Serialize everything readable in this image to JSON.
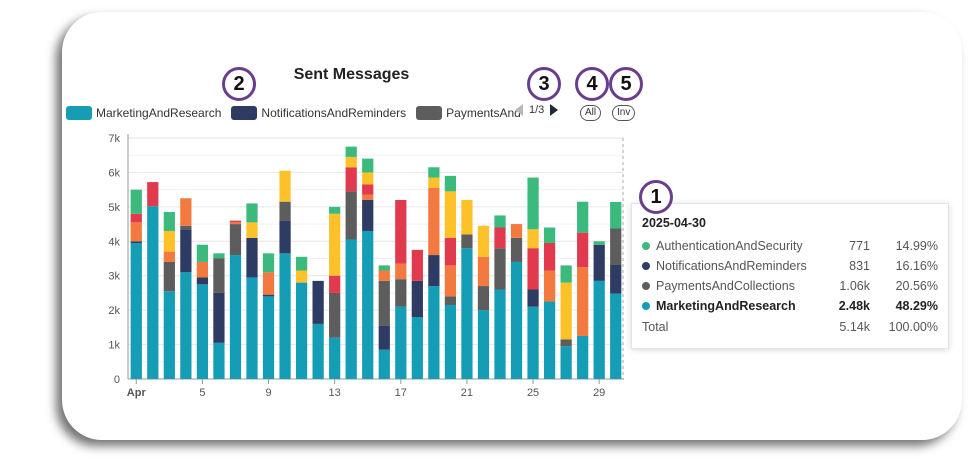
{
  "chart_data": {
    "type": "bar",
    "stacked": true,
    "title": "Sent Messages",
    "y_ticks": [
      "0",
      "1k",
      "2k",
      "3k",
      "4k",
      "5k",
      "6k",
      "7k"
    ],
    "ylim": [
      0,
      7000
    ],
    "x_tick_labels": [
      "Apr",
      "5",
      "9",
      "13",
      "17",
      "21",
      "25",
      "29"
    ],
    "x_tick_days": [
      1,
      5,
      9,
      13,
      17,
      21,
      25,
      29
    ],
    "days": [
      1,
      2,
      3,
      4,
      5,
      6,
      7,
      8,
      9,
      10,
      11,
      12,
      13,
      14,
      15,
      16,
      17,
      18,
      19,
      20,
      21,
      22,
      23,
      24,
      25,
      26,
      27,
      28,
      29,
      30
    ],
    "colors": {
      "MarketingAndResearch": "#159db5",
      "NotificationsAndReminders": "#2e3b63",
      "PaymentsAndCollections": "#5d5d5d",
      "Orange": "#f27a40",
      "Red": "#e13a4e",
      "Yellow": "#fdc12a",
      "AuthenticationAndSecurity": "#3cba7e"
    },
    "series": [
      {
        "name": "MarketingAndResearch",
        "values": [
          3950,
          5020,
          2550,
          3100,
          2750,
          1050,
          3600,
          2950,
          2400,
          3650,
          2800,
          1600,
          1200,
          4050,
          4300,
          850,
          2100,
          1800,
          2700,
          2150,
          3800,
          2000,
          2600,
          3400,
          2100,
          2250,
          950,
          1250,
          2850,
          2480
        ]
      },
      {
        "name": "NotificationsAndReminders",
        "values": [
          50,
          0,
          0,
          1250,
          200,
          1450,
          0,
          1150,
          50,
          950,
          0,
          1250,
          0,
          0,
          900,
          700,
          0,
          1050,
          900,
          0,
          0,
          0,
          0,
          0,
          500,
          0,
          0,
          0,
          1050,
          831
        ]
      },
      {
        "name": "PaymentsAndCollections",
        "values": [
          0,
          0,
          850,
          100,
          0,
          1000,
          900,
          0,
          0,
          550,
          0,
          0,
          1300,
          1400,
          0,
          1300,
          800,
          0,
          0,
          250,
          400,
          700,
          1200,
          700,
          0,
          0,
          200,
          0,
          0,
          1060
        ]
      },
      {
        "name": "Orange",
        "values": [
          550,
          0,
          300,
          800,
          450,
          0,
          50,
          0,
          650,
          0,
          0,
          0,
          0,
          0,
          150,
          300,
          450,
          0,
          1950,
          900,
          0,
          850,
          0,
          400,
          0,
          900,
          0,
          2000,
          0,
          0
        ]
      },
      {
        "name": "Red",
        "values": [
          250,
          700,
          0,
          0,
          0,
          0,
          50,
          0,
          0,
          0,
          0,
          0,
          500,
          700,
          300,
          0,
          1850,
          900,
          0,
          800,
          0,
          0,
          600,
          0,
          1200,
          800,
          0,
          1000,
          0,
          0
        ]
      },
      {
        "name": "Yellow",
        "values": [
          0,
          0,
          600,
          0,
          0,
          0,
          0,
          450,
          0,
          900,
          350,
          0,
          1800,
          300,
          350,
          0,
          0,
          0,
          300,
          1350,
          1000,
          900,
          0,
          0,
          550,
          0,
          1650,
          0,
          0,
          0
        ]
      },
      {
        "name": "AuthenticationAndSecurity",
        "values": [
          700,
          0,
          550,
          0,
          500,
          150,
          0,
          550,
          550,
          0,
          400,
          0,
          200,
          300,
          400,
          150,
          0,
          0,
          300,
          450,
          0,
          0,
          350,
          0,
          1500,
          450,
          500,
          900,
          100,
          771
        ]
      }
    ],
    "legend": [
      "MarketingAndResearch",
      "NotificationsAndReminders",
      "PaymentsAndAnd"
    ]
  },
  "legend_items": [
    {
      "label": "MarketingAndResearch",
      "color": "#159db5"
    },
    {
      "label": "NotificationsAndReminders",
      "color": "#2e3b63"
    },
    {
      "label": "PaymentsAnd",
      "color": "#5d5d5d"
    }
  ],
  "pager": {
    "text": "1/3"
  },
  "buttons": {
    "all": "All",
    "inv": "Inv"
  },
  "badges": [
    "1",
    "2",
    "3",
    "4",
    "5"
  ],
  "tooltip": {
    "date": "2025-04-30",
    "rows": [
      {
        "name": "AuthenticationAndSecurity",
        "value": "771",
        "pct": "14.99%",
        "color": "#3cba7e"
      },
      {
        "name": "NotificationsAndReminders",
        "value": "831",
        "pct": "16.16%",
        "color": "#2e3b63"
      },
      {
        "name": "PaymentsAndCollections",
        "value": "1.06k",
        "pct": "20.56%",
        "color": "#5d5d5d"
      },
      {
        "name": "MarketingAndResearch",
        "value": "2.48k",
        "pct": "48.29%",
        "color": "#159db5"
      }
    ],
    "total": {
      "name": "Total",
      "value": "5.14k",
      "pct": "100.00%"
    }
  }
}
